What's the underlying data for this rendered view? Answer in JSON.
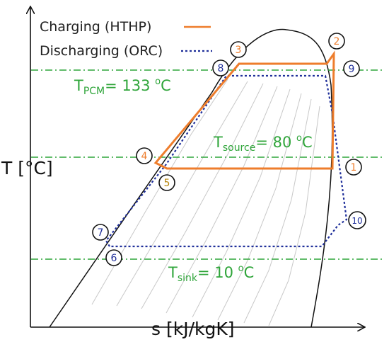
{
  "axes": {
    "y_label": "T [°C]",
    "x_label": "s [kJ/kgK]"
  },
  "legend": {
    "charging": "Charging (HTHP)",
    "discharging": "Discharging (ORC)"
  },
  "temperature_lines": {
    "pcm": {
      "symbol": "T",
      "subscript": "PCM",
      "value": "= 133 ",
      "superscript": "o",
      "unit": "C"
    },
    "source": {
      "symbol": "T",
      "subscript": "source",
      "value": "= 80 ",
      "superscript": "o",
      "unit": "C"
    },
    "sink": {
      "symbol": "T",
      "subscript": "sink",
      "value": "= 10 ",
      "superscript": "o",
      "unit": "C"
    }
  },
  "state_points": {
    "p1": "1",
    "p2": "2",
    "p3": "3",
    "p4": "4",
    "p5": "5",
    "p6": "6",
    "p7": "7",
    "p8": "8",
    "p9": "9",
    "p10": "10"
  },
  "colors": {
    "charging": "#ee7d2c",
    "discharging": "#1f2f9a",
    "temperature_lines": "#2fa53a",
    "isobars": "#c8c8c8",
    "dome": "#111111",
    "label_orange": "#ee7d2c",
    "label_blue": "#1f2f9a",
    "label_5": "#b8860b"
  }
}
